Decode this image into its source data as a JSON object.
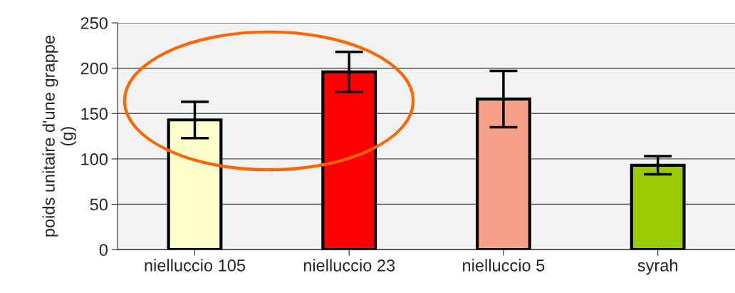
{
  "chart_data": {
    "type": "bar",
    "ylabel": "poids unitaire d'une grappe\n(g)",
    "categories": [
      "nielluccio 105",
      "nielluccio 23",
      "nielluccio 5",
      "syrah"
    ],
    "values": [
      143,
      196,
      166,
      93
    ],
    "colors": [
      "#ffffcc",
      "#ff0000",
      "#f7a08a",
      "#99cc00"
    ],
    "errors": [
      20,
      22,
      31,
      10
    ],
    "ylim": [
      0,
      250
    ],
    "yticks": [
      0,
      50,
      100,
      150,
      200,
      250
    ],
    "grid": "y"
  }
}
